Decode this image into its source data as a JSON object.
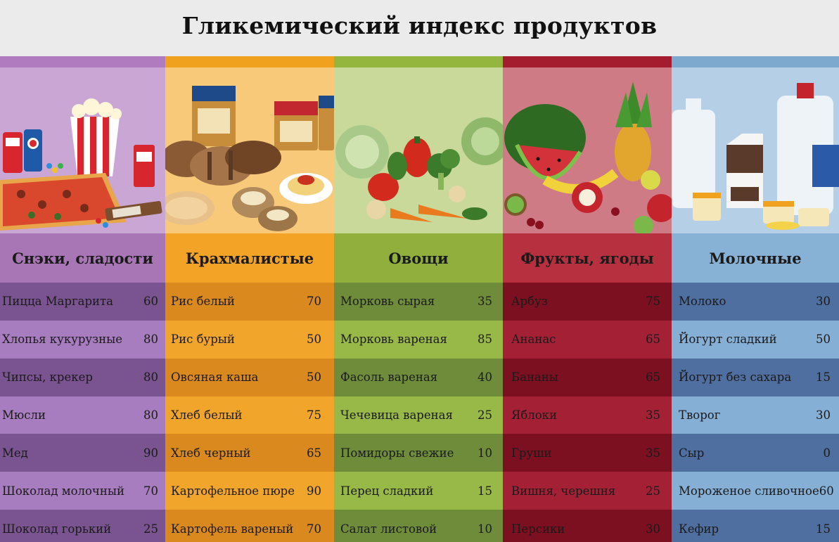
{
  "title": "Гликемический индекс продуктов",
  "colors": {
    "header_bg": "#ebebeb",
    "snacks": {
      "strip": "#b07bbf",
      "image_bg": "#c9a6d4",
      "head": "#a876b5",
      "row_dark": "#7a5490",
      "row_light": "#a77dbf"
    },
    "starch": {
      "strip": "#f0a21e",
      "image_bg": "#f8c979",
      "head": "#f3a325",
      "row_dark": "#d9891d",
      "row_light": "#f1a62b"
    },
    "veg": {
      "strip": "#94b53e",
      "image_bg": "#c8d99a",
      "head": "#90af3d",
      "row_dark": "#6e8c3a",
      "row_light": "#98b847"
    },
    "fruit": {
      "strip": "#a41d2e",
      "image_bg": "#cf7b86",
      "head": "#b7303f",
      "row_dark": "#7c1020",
      "row_light": "#a32035"
    },
    "dairy": {
      "strip": "#7ea9cf",
      "image_bg": "#b5d0e6",
      "head": "#87b2d6",
      "row_dark": "#4f6fa0",
      "row_light": "#86afd6"
    }
  },
  "categories": [
    {
      "id": "snacks",
      "label": "Снэки, сладости",
      "image_icons": [
        "popcorn-icon",
        "soda-can-icon",
        "pizza-icon",
        "candy-icon"
      ],
      "rows": [
        {
          "name": "Пицца  Маргарита",
          "value": "60"
        },
        {
          "name": "Хлопья кукурузные",
          "value": "80"
        },
        {
          "name": "Чипсы, крекер",
          "value": "80"
        },
        {
          "name": "Мюсли",
          "value": "80"
        },
        {
          "name": "Мед",
          "value": "90"
        },
        {
          "name": "Шоколад молочный",
          "value": "70"
        },
        {
          "name": "Шоколад горький",
          "value": "25"
        }
      ]
    },
    {
      "id": "starch",
      "label": "Крахмалистые",
      "image_icons": [
        "bread-icon",
        "jar-icon",
        "potato-icon",
        "pasta-icon"
      ],
      "rows": [
        {
          "name": "Рис белый",
          "value": "70"
        },
        {
          "name": "Рис бурый",
          "value": "50"
        },
        {
          "name": "Овсяная каша",
          "value": "50"
        },
        {
          "name": "Хлеб  белый",
          "value": "75"
        },
        {
          "name": "Хлеб черный",
          "value": "65"
        },
        {
          "name": "Картофельное пюре",
          "value": "90"
        },
        {
          "name": "Картофель вареный",
          "value": "70"
        }
      ]
    },
    {
      "id": "veg",
      "label": "Овощи",
      "image_icons": [
        "cabbage-icon",
        "pepper-icon",
        "broccoli-icon",
        "carrot-icon"
      ],
      "rows": [
        {
          "name": "Морковь сырая",
          "value": "35"
        },
        {
          "name": "Морковь вареная",
          "value": "85"
        },
        {
          "name": "Фасоль    вареная",
          "value": "40"
        },
        {
          "name": "Чечевица вареная",
          "value": "25"
        },
        {
          "name": "Помидоры свежие",
          "value": "10"
        },
        {
          "name": "Перец сладкий",
          "value": "15"
        },
        {
          "name": "Салат листовой",
          "value": "10"
        }
      ]
    },
    {
      "id": "fruit",
      "label": "Фрукты, ягоды",
      "image_icons": [
        "watermelon-icon",
        "pineapple-icon",
        "apple-icon",
        "kiwi-icon"
      ],
      "rows": [
        {
          "name": "Арбуз",
          "value": "75"
        },
        {
          "name": "Ананас",
          "value": "65"
        },
        {
          "name": "Бананы",
          "value": "65"
        },
        {
          "name": "Яблоки",
          "value": "35"
        },
        {
          "name": "Груши",
          "value": "35"
        },
        {
          "name": "Вишня, черешня",
          "value": "25"
        },
        {
          "name": "Персики",
          "value": "30"
        }
      ]
    },
    {
      "id": "dairy",
      "label": "Молочные",
      "image_icons": [
        "milk-jug-icon",
        "milk-carton-icon",
        "yogurt-cup-icon"
      ],
      "rows": [
        {
          "name": "Молоко",
          "value": "30"
        },
        {
          "name": "Йогурт сладкий",
          "value": "50"
        },
        {
          "name": "Йогурт без сахара",
          "value": "15"
        },
        {
          "name": "Творог",
          "value": "30"
        },
        {
          "name": "Сыр",
          "value": "0"
        },
        {
          "name": "Мороженое сливочное",
          "value": "60"
        },
        {
          "name": "Кефир",
          "value": "15"
        }
      ]
    }
  ]
}
